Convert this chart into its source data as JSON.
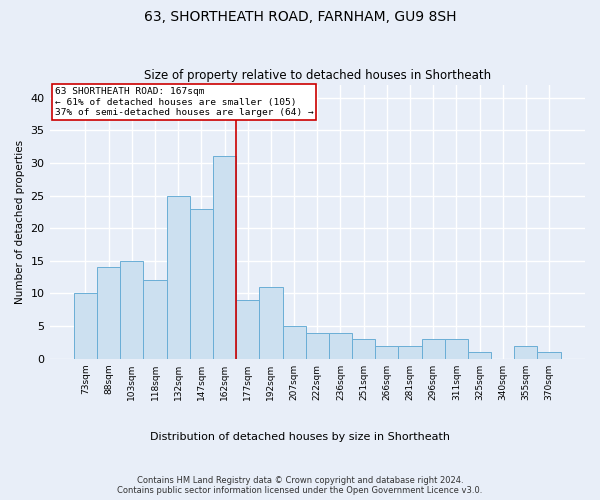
{
  "title": "63, SHORTHEATH ROAD, FARNHAM, GU9 8SH",
  "subtitle": "Size of property relative to detached houses in Shortheath",
  "xlabel": "Distribution of detached houses by size in Shortheath",
  "ylabel": "Number of detached properties",
  "categories": [
    "73sqm",
    "88sqm",
    "103sqm",
    "118sqm",
    "132sqm",
    "147sqm",
    "162sqm",
    "177sqm",
    "192sqm",
    "207sqm",
    "222sqm",
    "236sqm",
    "251sqm",
    "266sqm",
    "281sqm",
    "296sqm",
    "311sqm",
    "325sqm",
    "340sqm",
    "355sqm",
    "370sqm"
  ],
  "values": [
    10,
    14,
    15,
    12,
    25,
    23,
    31,
    9,
    11,
    5,
    4,
    4,
    3,
    2,
    2,
    3,
    3,
    1,
    0,
    2,
    1
  ],
  "bar_color": "#cce0f0",
  "bar_edge_color": "#6aaed6",
  "background_color": "#e8eef8",
  "grid_color": "#ffffff",
  "annotation_text_line1": "63 SHORTHEATH ROAD: 167sqm",
  "annotation_text_line2": "← 61% of detached houses are smaller (105)",
  "annotation_text_line3": "37% of semi-detached houses are larger (64) →",
  "annotation_box_color": "#ffffff",
  "annotation_border_color": "#cc0000",
  "vline_color": "#cc0000",
  "vline_bin": 7,
  "footer_line1": "Contains HM Land Registry data © Crown copyright and database right 2024.",
  "footer_line2": "Contains public sector information licensed under the Open Government Licence v3.0.",
  "ylim": [
    0,
    42
  ],
  "yticks": [
    0,
    5,
    10,
    15,
    20,
    25,
    30,
    35,
    40
  ]
}
